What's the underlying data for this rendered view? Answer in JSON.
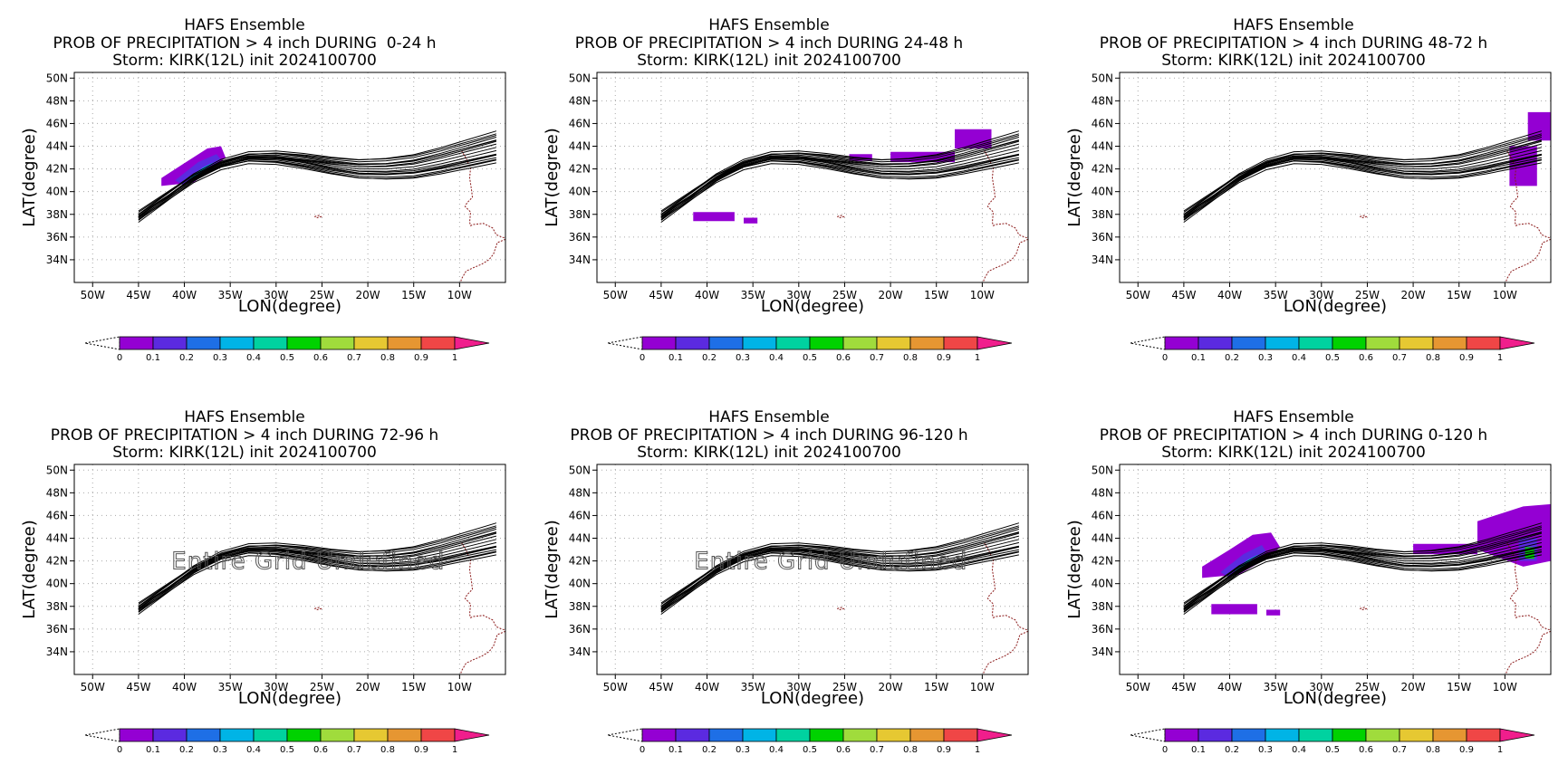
{
  "figure": {
    "background": "#ffffff"
  },
  "colorbar": {
    "colors": [
      "#9400d3",
      "#5b2ae0",
      "#1e6fe6",
      "#00b4e6",
      "#00d2a0",
      "#00d200",
      "#a0dc3c",
      "#e6c832",
      "#e69632",
      "#f04646",
      "#f01e8c"
    ],
    "labels": [
      "0",
      "0.1",
      "0.2",
      "0.3",
      "0.4",
      "0.5",
      "0.6",
      "0.7",
      "0.8",
      "0.9",
      "1"
    ]
  },
  "chart_data": [
    {
      "type": "map",
      "title": "HAFS Ensemble",
      "subtitle": "PROB OF PRECIPITATION > 4 inch DURING  0-24 h",
      "storm_line": "Storm: KIRK(12L) init 2024100700",
      "xlabel": "LON(degree)",
      "ylabel": "LAT(degree)",
      "x_ticks": [
        "50W",
        "45W",
        "40W",
        "35W",
        "30W",
        "25W",
        "20W",
        "15W",
        "10W"
      ],
      "y_ticks": [
        "34N",
        "36N",
        "38N",
        "40N",
        "42N",
        "44N",
        "46N",
        "48N",
        "50N"
      ],
      "xlim": [
        -52,
        -5
      ],
      "ylim": [
        32,
        50.5
      ],
      "grid": true,
      "probability_areas": [
        {
          "lon": [
            -42.5,
            -40,
            -37.5,
            -36,
            -35.5,
            -37,
            -39,
            -42.5
          ],
          "lat": [
            41.2,
            42.5,
            43.8,
            44,
            43,
            42,
            40.8,
            40.5
          ],
          "prob": 0.05
        },
        {
          "lon": [
            -41,
            -38.5,
            -36.5,
            -36,
            -37.5,
            -40
          ],
          "lat": [
            41,
            42.6,
            43.3,
            42.8,
            42,
            40.5
          ],
          "prob": 0.15
        },
        {
          "lon": [
            -39.5,
            -38,
            -36.8,
            -37.5,
            -39
          ],
          "lat": [
            41.2,
            42.1,
            42.6,
            42.2,
            41
          ],
          "prob": 0.3
        }
      ],
      "annotation": ""
    },
    {
      "type": "map",
      "title": "HAFS Ensemble",
      "subtitle": "PROB OF PRECIPITATION > 4 inch DURING 24-48 h",
      "storm_line": "Storm: KIRK(12L) init 2024100700",
      "xlabel": "LON(degree)",
      "ylabel": "LAT(degree)",
      "x_ticks": [
        "50W",
        "45W",
        "40W",
        "35W",
        "30W",
        "25W",
        "20W",
        "15W",
        "10W"
      ],
      "y_ticks": [
        "34N",
        "36N",
        "38N",
        "40N",
        "42N",
        "44N",
        "46N",
        "48N",
        "50N"
      ],
      "xlim": [
        -52,
        -5
      ],
      "ylim": [
        32,
        50.5
      ],
      "grid": true,
      "probability_areas": [
        {
          "lon": [
            -41.5,
            -37,
            -37,
            -41.5
          ],
          "lat": [
            38.2,
            38.2,
            37.4,
            37.4
          ],
          "prob": 0.05
        },
        {
          "lon": [
            -36,
            -34.5,
            -34.5,
            -36
          ],
          "lat": [
            37.7,
            37.7,
            37.2,
            37.2
          ],
          "prob": 0.05
        },
        {
          "lon": [
            -13,
            -9,
            -9,
            -13
          ],
          "lat": [
            45.5,
            45.5,
            43.8,
            43.8
          ],
          "prob": 0.05
        },
        {
          "lon": [
            -20,
            -13,
            -13,
            -20
          ],
          "lat": [
            43.5,
            43.5,
            42.6,
            42.6
          ],
          "prob": 0.05
        },
        {
          "lon": [
            -24.5,
            -22,
            -22,
            -24.5
          ],
          "lat": [
            43.3,
            43.3,
            42.7,
            42.7
          ],
          "prob": 0.05
        }
      ],
      "annotation": ""
    },
    {
      "type": "map",
      "title": "HAFS Ensemble",
      "subtitle": "PROB OF PRECIPITATION > 4 inch DURING 48-72 h",
      "storm_line": "Storm: KIRK(12L) init 2024100700",
      "xlabel": "LON(degree)",
      "ylabel": "LAT(degree)",
      "x_ticks": [
        "50W",
        "45W",
        "40W",
        "35W",
        "30W",
        "25W",
        "20W",
        "15W",
        "10W"
      ],
      "y_ticks": [
        "34N",
        "36N",
        "38N",
        "40N",
        "42N",
        "44N",
        "46N",
        "48N",
        "50N"
      ],
      "xlim": [
        -52,
        -5
      ],
      "ylim": [
        32,
        50.5
      ],
      "grid": true,
      "probability_areas": [
        {
          "lon": [
            -7.5,
            -5,
            -5,
            -7.5
          ],
          "lat": [
            47,
            47,
            44.5,
            44.5
          ],
          "prob": 0.05
        },
        {
          "lon": [
            -9.5,
            -6.5,
            -6.5,
            -9.5
          ],
          "lat": [
            44,
            44,
            40.5,
            40.5
          ],
          "prob": 0.05
        }
      ],
      "annotation": ""
    },
    {
      "type": "map",
      "title": "HAFS Ensemble",
      "subtitle": "PROB OF PRECIPITATION > 4 inch DURING 72-96 h",
      "storm_line": "Storm: KIRK(12L) init 2024100700",
      "xlabel": "LON(degree)",
      "ylabel": "LAT(degree)",
      "x_ticks": [
        "50W",
        "45W",
        "40W",
        "35W",
        "30W",
        "25W",
        "20W",
        "15W",
        "10W"
      ],
      "y_ticks": [
        "34N",
        "36N",
        "38N",
        "40N",
        "42N",
        "44N",
        "46N",
        "48N",
        "50N"
      ],
      "xlim": [
        -52,
        -5
      ],
      "ylim": [
        32,
        50.5
      ],
      "grid": true,
      "probability_areas": [],
      "annotation": "Entire Grid Undefined"
    },
    {
      "type": "map",
      "title": "HAFS Ensemble",
      "subtitle": "PROB OF PRECIPITATION > 4 inch DURING 96-120 h",
      "storm_line": "Storm: KIRK(12L) init 2024100700",
      "xlabel": "LON(degree)",
      "ylabel": "LAT(degree)",
      "x_ticks": [
        "50W",
        "45W",
        "40W",
        "35W",
        "30W",
        "25W",
        "20W",
        "15W",
        "10W"
      ],
      "y_ticks": [
        "34N",
        "36N",
        "38N",
        "40N",
        "42N",
        "44N",
        "46N",
        "48N",
        "50N"
      ],
      "xlim": [
        -52,
        -5
      ],
      "ylim": [
        32,
        50.5
      ],
      "grid": true,
      "probability_areas": [],
      "annotation": "Entire Grid Undefined"
    },
    {
      "type": "map",
      "title": "HAFS Ensemble",
      "subtitle": "PROB OF PRECIPITATION > 4 inch DURING 0-120 h",
      "storm_line": "Storm: KIRK(12L) init 2024100700",
      "xlabel": "LON(degree)",
      "ylabel": "LAT(degree)",
      "x_ticks": [
        "50W",
        "45W",
        "40W",
        "35W",
        "30W",
        "25W",
        "20W",
        "15W",
        "10W"
      ],
      "y_ticks": [
        "34N",
        "36N",
        "38N",
        "40N",
        "42N",
        "44N",
        "46N",
        "48N",
        "50N"
      ],
      "xlim": [
        -52,
        -5
      ],
      "ylim": [
        32,
        50.5
      ],
      "grid": true,
      "probability_areas": [
        {
          "lon": [
            -43,
            -40,
            -37.5,
            -35.5,
            -34.5,
            -36,
            -39,
            -43
          ],
          "lat": [
            41.5,
            43,
            44.3,
            44.5,
            43.2,
            42.2,
            40.8,
            40.5
          ],
          "prob": 0.05
        },
        {
          "lon": [
            -41,
            -38.5,
            -36.5,
            -36,
            -37.5,
            -40
          ],
          "lat": [
            41,
            42.6,
            43.4,
            42.8,
            42,
            40.5
          ],
          "prob": 0.15
        },
        {
          "lon": [
            -39.5,
            -38,
            -36.8,
            -37.5,
            -39
          ],
          "lat": [
            41.2,
            42.1,
            42.6,
            42.2,
            41
          ],
          "prob": 0.3
        },
        {
          "lon": [
            -42,
            -37,
            -37,
            -42
          ],
          "lat": [
            38.2,
            38.2,
            37.3,
            37.3
          ],
          "prob": 0.05
        },
        {
          "lon": [
            -36,
            -34.5,
            -34.5,
            -36
          ],
          "lat": [
            37.7,
            37.7,
            37.2,
            37.2
          ],
          "prob": 0.05
        },
        {
          "lon": [
            -13,
            -8,
            -5,
            -5,
            -8,
            -13
          ],
          "lat": [
            45.5,
            46.8,
            47,
            42,
            41.5,
            43
          ],
          "prob": 0.05
        },
        {
          "lon": [
            -20,
            -13,
            -13,
            -20
          ],
          "lat": [
            43.5,
            43.5,
            42.6,
            42.6
          ],
          "prob": 0.05
        },
        {
          "lon": [
            -8.5,
            -6.5,
            -6.5,
            -8.5
          ],
          "lat": [
            44,
            44,
            42,
            42
          ],
          "prob": 0.15
        },
        {
          "lon": [
            -7.8,
            -6.8,
            -6.8,
            -7.8
          ],
          "lat": [
            43.2,
            43.2,
            42.2,
            42.2
          ],
          "prob": 0.5
        }
      ],
      "annotation": ""
    }
  ],
  "tracks": {
    "color": "#000000",
    "lon": [
      -45,
      -42,
      -39,
      -36,
      -33,
      -30,
      -27,
      -24,
      -21,
      -18,
      -15,
      -12,
      -9,
      -6
    ],
    "lat": [
      37.8,
      39.5,
      41.2,
      42.4,
      43.0,
      43.0,
      42.7,
      42.3,
      42.0,
      42.0,
      42.2,
      42.7,
      43.3,
      43.9
    ],
    "members": [
      {
        "dlat": 0.0,
        "slope": 0.0
      },
      {
        "dlat": 0.3,
        "slope": 0.25
      },
      {
        "dlat": -0.3,
        "slope": -0.25
      },
      {
        "dlat": 0.5,
        "slope": 0.4
      },
      {
        "dlat": -0.5,
        "slope": -0.4
      },
      {
        "dlat": 0.15,
        "slope": 0.1
      },
      {
        "dlat": -0.15,
        "slope": -0.1
      },
      {
        "dlat": 0.6,
        "slope": 0.6
      },
      {
        "dlat": -0.6,
        "slope": -0.55
      },
      {
        "dlat": 0.4,
        "slope": 0.15
      },
      {
        "dlat": -0.4,
        "slope": -0.2
      },
      {
        "dlat": 0.2,
        "slope": 0.5
      },
      {
        "dlat": -0.2,
        "slope": -0.5
      },
      {
        "dlat": 0.7,
        "slope": 0.35
      },
      {
        "dlat": -0.7,
        "slope": -0.3
      },
      {
        "dlat": 0.1,
        "slope": 0.3
      },
      {
        "dlat": -0.1,
        "slope": -0.35
      }
    ]
  },
  "coastline": {
    "color": "#8b1a1a",
    "lon": [
      -9.8,
      -9.4,
      -8.8,
      -8.9,
      -8.7,
      -8.6,
      -9.2,
      -9.4,
      -8.8,
      -8.9,
      -8.8,
      -8.5,
      -7.4,
      -6.4,
      -6.0,
      -5.4,
      -5.0
    ],
    "lat": [
      43.6,
      43.1,
      42.1,
      41.2,
      40.2,
      39.5,
      39.0,
      38.7,
      38.2,
      37.3,
      37.0,
      37.1,
      37.2,
      36.8,
      36.2,
      36.0,
      35.9
    ],
    "africa_lon": [
      -5.0,
      -5.9,
      -6.3,
      -6.8,
      -7.6,
      -8.5,
      -9.3,
      -9.8,
      -10.0
    ],
    "africa_lat": [
      35.8,
      35.5,
      34.5,
      34.0,
      33.6,
      33.3,
      33.0,
      32.3,
      31.6
    ],
    "island_lon": [
      -25.8,
      -25.4,
      -25.1,
      -25.5,
      -25.8
    ],
    "island_lat": [
      37.8,
      37.9,
      37.8,
      37.7,
      37.8
    ]
  }
}
